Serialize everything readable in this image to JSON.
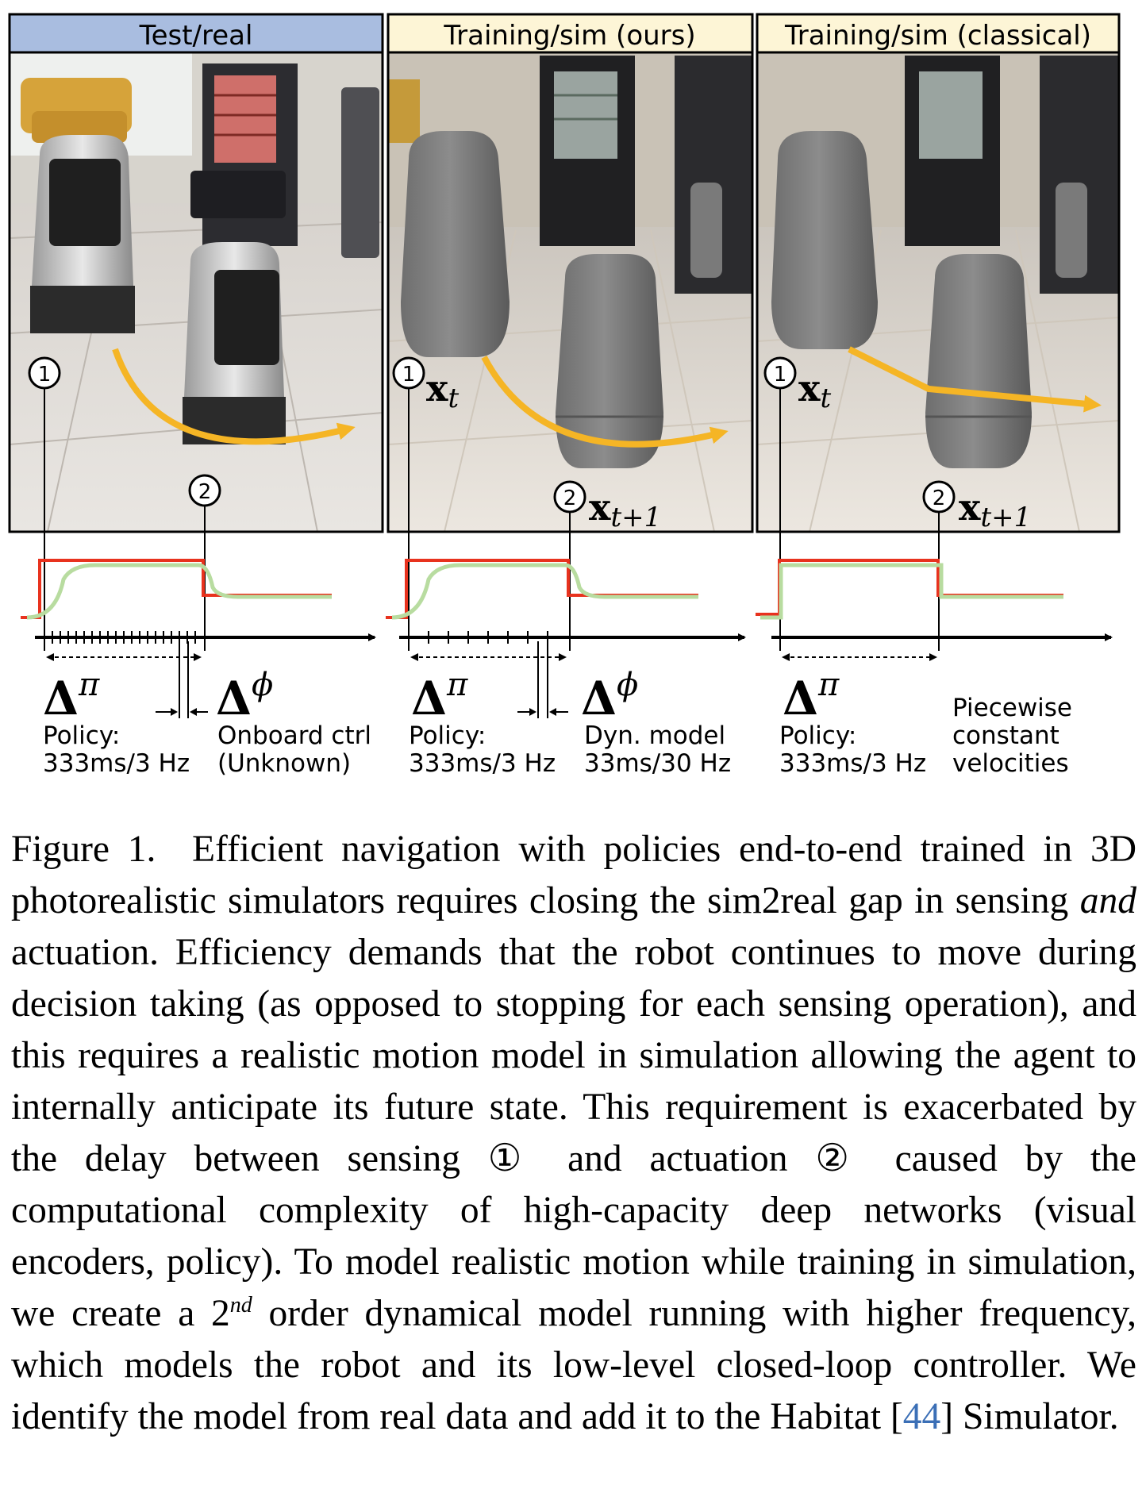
{
  "panels": [
    {
      "header": "Test/real",
      "header_color": "#a9bde0"
    },
    {
      "header": "Training/sim (ours)",
      "header_color": "#fdf5d6"
    },
    {
      "header": "Training/sim (classical)",
      "header_color": "#fdf5d6"
    }
  ],
  "markers": {
    "sensing": "1",
    "actuation": "2"
  },
  "state_labels": {
    "xt": "x",
    "xt_sub": "t",
    "xt1": "x",
    "xt1_sub": "t+1"
  },
  "delta_labels": {
    "delta": "Δ",
    "pi": "π",
    "phi": "ϕ"
  },
  "annotations": {
    "real_policy_line1": "Policy:",
    "real_policy_line2": "333ms/3 Hz",
    "real_ctrl_line1": "Onboard ctrl",
    "real_ctrl_line2": "(Unknown)",
    "ours_policy_line1": "Policy:",
    "ours_policy_line2": "333ms/3 Hz",
    "ours_dyn_line1": "Dyn. model",
    "ours_dyn_line2": "33ms/30 Hz",
    "classical_policy_line1": "Policy:",
    "classical_policy_line2": "333ms/3 Hz",
    "classical_pw_line1": "Piecewise",
    "classical_pw_line2": "constant",
    "classical_pw_line3": "velocities"
  },
  "colors": {
    "command_signal": "#e8321e",
    "response_signal": "#b8dca0",
    "trajectory_arrow": "#f5b525",
    "citation": "#3b6fb6"
  },
  "caption": {
    "label": "Figure 1.",
    "part1": "Efficient navigation with policies end-to-end trained in 3D photorealistic simulators requires closing the sim2real gap in sensing",
    "emph": "and",
    "part2": "actuation. Efficiency demands that the robot continues to move during decision taking (as opposed to stopping for each sensing operation), and this requires a realistic motion model in simulation allowing the agent to internally anticipate its future state. This requirement is exacerbated by the delay between sensing ① and actuation ② caused by the computational complexity of high-capacity deep networks (visual encoders, policy). To model realistic motion while training in simulation, we create a 2",
    "sup": "nd",
    "part3": "order dynamical model running with higher frequency, which models the robot and its low-level closed-loop controller. We identify the model from real data and add it to the Habitat [",
    "citation": "44",
    "part4": "] Simulator."
  }
}
